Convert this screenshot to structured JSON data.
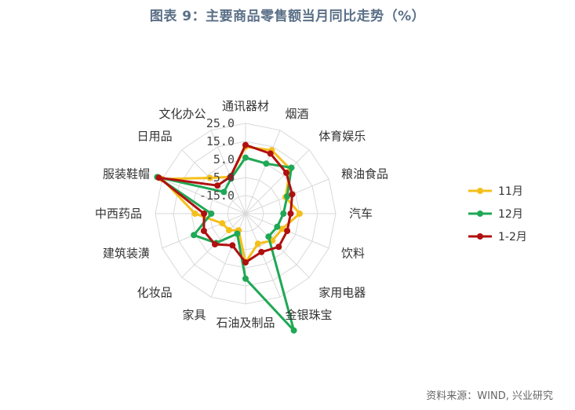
{
  "title": "图表 9：主要商品零售额当月同比走势（%）",
  "source": "资料来源：WIND, 兴业研究",
  "chart_data": {
    "type": "radar",
    "categories": [
      "通讯器材",
      "烟酒",
      "体育娱乐",
      "粮油食品",
      "汽车",
      "饮料",
      "家用电器",
      "金银珠宝",
      "石油及制品",
      "家具",
      "化妆品",
      "建筑装潢",
      "中西药品",
      "服装鞋帽",
      "日用品",
      "文化办公"
    ],
    "radial_ticks": [
      "25.0",
      "15.0",
      "5.0",
      "-5.0",
      "-15.0"
    ],
    "rlim": [
      -25,
      25
    ],
    "legend_position": "right",
    "series": [
      {
        "name": "11月",
        "color": "#f5bf1b",
        "values": [
          12.0,
          13.0,
          10.0,
          -1.0,
          5.0,
          -3.0,
          -4.0,
          -7.0,
          2.0,
          -15.0,
          -12.0,
          -11.0,
          3.0,
          25.0,
          3.0,
          -3.0
        ]
      },
      {
        "name": "12月",
        "color": "#1fa855",
        "values": [
          6.0,
          5.0,
          11.0,
          0.0,
          -4.0,
          -6.0,
          -7.0,
          45.0,
          11.0,
          -13.0,
          -2.0,
          6.0,
          -6.0,
          28.0,
          -8.0,
          -4.0
        ]
      },
      {
        "name": "1-2月",
        "color": "#b01010",
        "values": [
          13.0,
          11.0,
          7.0,
          3.0,
          0.0,
          0.0,
          1.0,
          -2.0,
          2.0,
          -6.0,
          -1.0,
          0.0,
          -2.0,
          27.0,
          -3.0,
          -3.0
        ]
      }
    ]
  }
}
